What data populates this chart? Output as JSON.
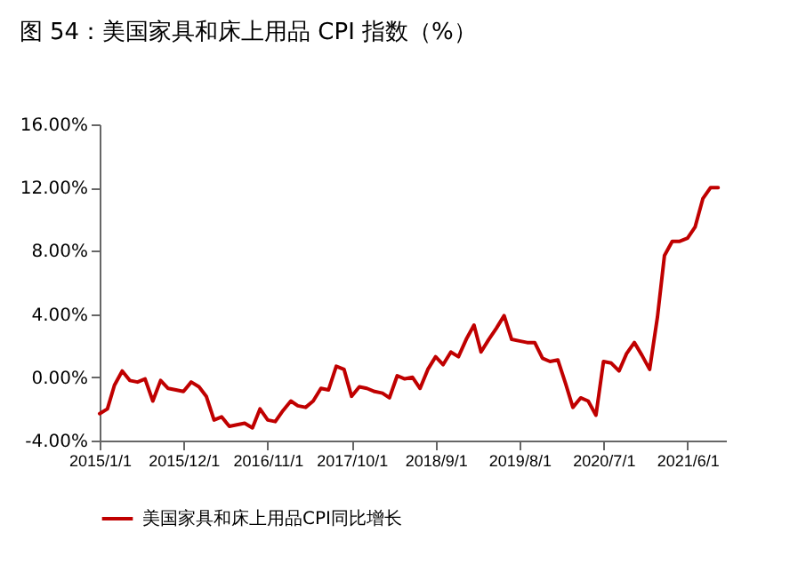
{
  "chart_data": {
    "type": "line",
    "title": "图 54：美国家具和床上用品 CPI 指数（%）",
    "x": [
      "2015-01",
      "2015-02",
      "2015-03",
      "2015-04",
      "2015-05",
      "2015-06",
      "2015-07",
      "2015-08",
      "2015-09",
      "2015-10",
      "2015-11",
      "2015-12",
      "2016-01",
      "2016-02",
      "2016-03",
      "2016-04",
      "2016-05",
      "2016-06",
      "2016-07",
      "2016-08",
      "2016-09",
      "2016-10",
      "2016-11",
      "2016-12",
      "2017-01",
      "2017-02",
      "2017-03",
      "2017-04",
      "2017-05",
      "2017-06",
      "2017-07",
      "2017-08",
      "2017-09",
      "2017-10",
      "2017-11",
      "2017-12",
      "2018-01",
      "2018-02",
      "2018-03",
      "2018-04",
      "2018-05",
      "2018-06",
      "2018-07",
      "2018-08",
      "2018-09",
      "2018-10",
      "2018-11",
      "2018-12",
      "2019-01",
      "2019-02",
      "2019-03",
      "2019-04",
      "2019-05",
      "2019-06",
      "2019-07",
      "2019-08",
      "2019-09",
      "2019-10",
      "2019-11",
      "2019-12",
      "2020-01",
      "2020-02",
      "2020-03",
      "2020-04",
      "2020-05",
      "2020-06",
      "2020-07",
      "2020-08",
      "2020-09",
      "2020-10",
      "2020-11",
      "2020-12",
      "2021-01",
      "2021-02",
      "2021-03",
      "2021-04",
      "2021-05",
      "2021-06",
      "2021-07",
      "2021-08",
      "2021-09",
      "2021-10"
    ],
    "series": [
      {
        "name": "美国家具和床上用品CPI同比增长",
        "color": "#c00000",
        "values": [
          -2.3,
          -2.0,
          -0.5,
          0.4,
          -0.2,
          -0.3,
          -0.1,
          -1.5,
          -0.2,
          -0.7,
          -0.8,
          -0.9,
          -0.3,
          -0.6,
          -1.2,
          -2.7,
          -2.5,
          -3.1,
          -3.0,
          -2.9,
          -3.2,
          -2.0,
          -2.7,
          -2.8,
          -2.1,
          -1.5,
          -1.8,
          -1.9,
          -1.5,
          -0.7,
          -0.8,
          0.7,
          0.5,
          -1.2,
          -0.6,
          -0.7,
          -0.9,
          -1.0,
          -1.3,
          0.1,
          -0.1,
          0.0,
          -0.7,
          0.5,
          1.3,
          0.8,
          1.6,
          1.3,
          2.4,
          3.3,
          1.6,
          2.4,
          3.1,
          3.9,
          2.4,
          2.3,
          2.2,
          2.2,
          1.2,
          1.0,
          1.1,
          -0.4,
          -1.9,
          -1.3,
          -1.5,
          -2.4,
          1.0,
          0.9,
          0.4,
          1.5,
          2.2,
          1.4,
          0.5,
          3.8,
          7.7,
          8.6,
          8.6,
          8.8,
          9.5,
          11.3,
          12.0,
          12.0
        ]
      }
    ],
    "xlim": [
      "2015-01-01",
      "2021-11-01"
    ],
    "xticks": [
      {
        "value": "2015-01-01",
        "label": "2015/1/1"
      },
      {
        "value": "2015-12-01",
        "label": "2015/12/1"
      },
      {
        "value": "2016-11-01",
        "label": "2016/11/1"
      },
      {
        "value": "2017-10-01",
        "label": "2017/10/1"
      },
      {
        "value": "2018-09-01",
        "label": "2018/9/1"
      },
      {
        "value": "2019-08-01",
        "label": "2019/8/1"
      },
      {
        "value": "2020-07-01",
        "label": "2020/7/1"
      },
      {
        "value": "2021-06-01",
        "label": "2021/6/1"
      }
    ],
    "ylim": [
      -4,
      16
    ],
    "yticks": [
      {
        "value": -4,
        "label": "-4.00%"
      },
      {
        "value": 0,
        "label": "0.00%"
      },
      {
        "value": 4,
        "label": "4.00%"
      },
      {
        "value": 8,
        "label": "8.00%"
      },
      {
        "value": 12,
        "label": "12.00%"
      },
      {
        "value": 16,
        "label": "16.00%"
      }
    ],
    "grid": false,
    "legend": "bottom",
    "marker": "none",
    "line_style": "solid"
  }
}
